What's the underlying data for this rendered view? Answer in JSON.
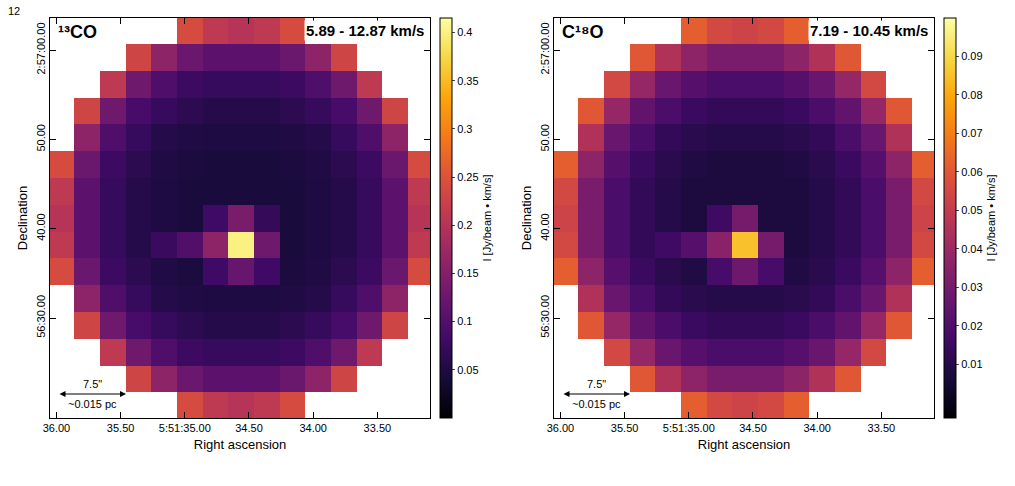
{
  "page": "12",
  "chart_data": [
    {
      "type": "heatmap",
      "label": "¹³CO",
      "title": "5.89 - 12.87 km/s",
      "xlabel": "Right ascension",
      "ylabel": "Declination",
      "colorbar_label": "I [Jy/beam • km/s]",
      "scale_bar": {
        "length_label": "7.5\"",
        "size_label": "~0.015 pc"
      },
      "grid": false,
      "xlim": [
        36.05,
        33.09
      ],
      "xticks": [
        {
          "value": 36,
          "label": "36.00"
        },
        {
          "value": 35.5,
          "label": "35.50"
        },
        {
          "value": 35,
          "label": "5:51:35.00"
        },
        {
          "value": 34.5,
          "label": "34.50"
        },
        {
          "value": 34,
          "label": "34.00"
        },
        {
          "value": 33.5,
          "label": "33.50"
        }
      ],
      "ylim": [
        18.8,
        63.6
      ],
      "yticks": [
        {
          "value": 60,
          "label": "2:57:00.00"
        },
        {
          "value": 50,
          "label": "50.00"
        },
        {
          "value": 40,
          "label": "40.00"
        },
        {
          "value": 30,
          "label": "56:30.00"
        }
      ],
      "zlim": [
        0,
        0.415
      ],
      "zticks": [
        0.05,
        0.1,
        0.15,
        0.2,
        0.25,
        0.3,
        0.35,
        0.4
      ],
      "x": [
        33.16,
        33.36,
        33.56,
        33.76,
        33.96,
        34.16,
        34.36,
        34.56,
        34.76,
        34.96,
        35.16,
        35.36,
        35.56,
        35.76,
        35.96
      ],
      "y": [
        20.2,
        23.2,
        26.2,
        29.2,
        32.2,
        35.2,
        38.2,
        41.2,
        44.2,
        47.2,
        50.2,
        53.2,
        56.2,
        59.2,
        62.2
      ],
      "z": [
        [
          null,
          null,
          null,
          null,
          null,
          0.24,
          0.21,
          0.2,
          0.21,
          0.24,
          null,
          null,
          null,
          null,
          null
        ],
        [
          null,
          null,
          null,
          0.23,
          0.16,
          0.125,
          0.11,
          0.11,
          0.11,
          0.125,
          0.16,
          0.23,
          null,
          null,
          null
        ],
        [
          null,
          null,
          0.21,
          0.13,
          0.095,
          0.078,
          0.072,
          0.072,
          0.072,
          0.078,
          0.095,
          0.13,
          0.21,
          null,
          null
        ],
        [
          null,
          0.23,
          0.13,
          0.088,
          0.072,
          0.062,
          0.057,
          0.057,
          0.057,
          0.062,
          0.072,
          0.088,
          0.13,
          0.23,
          null
        ],
        [
          null,
          0.16,
          0.095,
          0.072,
          0.057,
          0.052,
          0.05,
          0.05,
          0.05,
          0.052,
          0.057,
          0.072,
          0.095,
          0.16,
          null
        ],
        [
          0.24,
          0.125,
          0.078,
          0.062,
          0.052,
          0.047,
          0.08,
          0.12,
          0.08,
          0.047,
          0.052,
          0.062,
          0.078,
          0.125,
          0.24
        ],
        [
          0.21,
          0.11,
          0.072,
          0.057,
          0.05,
          0.045,
          0.13,
          0.4,
          0.16,
          0.1,
          0.075,
          0.057,
          0.072,
          0.11,
          0.21
        ],
        [
          0.2,
          0.11,
          0.072,
          0.057,
          0.05,
          0.045,
          0.07,
          0.14,
          0.08,
          0.045,
          0.05,
          0.057,
          0.072,
          0.11,
          0.2
        ],
        [
          0.21,
          0.11,
          0.072,
          0.057,
          0.05,
          0.045,
          0.045,
          0.045,
          0.045,
          0.045,
          0.05,
          0.057,
          0.072,
          0.11,
          0.21
        ],
        [
          0.24,
          0.125,
          0.078,
          0.062,
          0.052,
          0.047,
          0.045,
          0.045,
          0.045,
          0.047,
          0.052,
          0.062,
          0.078,
          0.125,
          0.24
        ],
        [
          null,
          0.16,
          0.095,
          0.072,
          0.057,
          0.052,
          0.05,
          0.05,
          0.05,
          0.052,
          0.057,
          0.072,
          0.095,
          0.16,
          null
        ],
        [
          null,
          0.23,
          0.13,
          0.088,
          0.072,
          0.062,
          0.057,
          0.057,
          0.057,
          0.062,
          0.072,
          0.088,
          0.13,
          0.23,
          null
        ],
        [
          null,
          null,
          0.21,
          0.13,
          0.095,
          0.078,
          0.072,
          0.072,
          0.072,
          0.078,
          0.095,
          0.13,
          0.21,
          null,
          null
        ],
        [
          null,
          null,
          null,
          0.23,
          0.16,
          0.125,
          0.11,
          0.11,
          0.11,
          0.125,
          0.16,
          0.23,
          null,
          null,
          null
        ],
        [
          null,
          null,
          null,
          null,
          null,
          0.24,
          0.21,
          0.2,
          0.21,
          0.24,
          null,
          null,
          null,
          null,
          null
        ]
      ]
    },
    {
      "type": "heatmap",
      "label": "C¹⁸O",
      "title": "7.19 - 10.45 km/s",
      "xlabel": "Right ascension",
      "ylabel": "Declination",
      "colorbar_label": "I [Jy/beam • km/s]",
      "scale_bar": {
        "length_label": "7.5\"",
        "size_label": "~0.015 pc"
      },
      "grid": false,
      "xlim": [
        36.05,
        33.09
      ],
      "xticks": [
        {
          "value": 36,
          "label": "36.00"
        },
        {
          "value": 35.5,
          "label": "35.50"
        },
        {
          "value": 35,
          "label": "5:51:35.00"
        },
        {
          "value": 34.5,
          "label": "34.50"
        },
        {
          "value": 34,
          "label": "34.00"
        },
        {
          "value": 33.5,
          "label": "33.50"
        }
      ],
      "ylim": [
        18.8,
        63.6
      ],
      "yticks": [
        {
          "value": 60,
          "label": "2:57:00.00"
        },
        {
          "value": 50,
          "label": "50.00"
        },
        {
          "value": 40,
          "label": "40.00"
        },
        {
          "value": 30,
          "label": "56:30.00"
        }
      ],
      "zlim": [
        -0.004,
        0.1
      ],
      "zticks": [
        0.01,
        0.02,
        0.03,
        0.04,
        0.05,
        0.06,
        0.07,
        0.08,
        0.09
      ],
      "x": [
        33.16,
        33.36,
        33.56,
        33.76,
        33.96,
        34.16,
        34.36,
        34.56,
        34.76,
        34.96,
        35.16,
        35.36,
        35.56,
        35.76,
        35.96
      ],
      "y": [
        20.2,
        23.2,
        26.2,
        29.2,
        32.2,
        35.2,
        38.2,
        41.2,
        44.2,
        47.2,
        50.2,
        53.2,
        56.2,
        59.2,
        62.2
      ],
      "z": [
        [
          null,
          null,
          null,
          null,
          null,
          0.062,
          0.055,
          0.053,
          0.055,
          0.062,
          null,
          null,
          null,
          null,
          null
        ],
        [
          null,
          null,
          null,
          0.06,
          0.045,
          0.036,
          0.031,
          0.031,
          0.031,
          0.036,
          0.045,
          0.06,
          null,
          null,
          null
        ],
        [
          null,
          null,
          0.055,
          0.038,
          0.027,
          0.022,
          0.019,
          0.019,
          0.019,
          0.022,
          0.027,
          0.038,
          0.055,
          null,
          null
        ],
        [
          null,
          0.06,
          0.038,
          0.025,
          0.019,
          0.015,
          0.013,
          0.013,
          0.013,
          0.015,
          0.019,
          0.025,
          0.038,
          0.06,
          null
        ],
        [
          null,
          0.045,
          0.027,
          0.019,
          0.013,
          0.011,
          0.01,
          0.01,
          0.01,
          0.011,
          0.013,
          0.019,
          0.027,
          0.045,
          null
        ],
        [
          0.062,
          0.036,
          0.022,
          0.015,
          0.011,
          0.009,
          0.018,
          0.028,
          0.018,
          0.009,
          0.011,
          0.015,
          0.022,
          0.036,
          0.062
        ],
        [
          0.055,
          0.031,
          0.019,
          0.013,
          0.01,
          0.008,
          0.03,
          0.085,
          0.035,
          0.022,
          0.016,
          0.013,
          0.019,
          0.031,
          0.055
        ],
        [
          0.053,
          0.031,
          0.019,
          0.013,
          0.01,
          0.008,
          0.008,
          0.03,
          0.016,
          0.008,
          0.01,
          0.013,
          0.019,
          0.031,
          0.053
        ],
        [
          0.055,
          0.031,
          0.019,
          0.013,
          0.01,
          0.008,
          0.008,
          0.008,
          0.008,
          0.008,
          0.01,
          0.013,
          0.019,
          0.031,
          0.055
        ],
        [
          0.062,
          0.036,
          0.022,
          0.015,
          0.011,
          0.009,
          0.008,
          0.008,
          0.008,
          0.009,
          0.011,
          0.015,
          0.022,
          0.036,
          0.062
        ],
        [
          null,
          0.045,
          0.027,
          0.019,
          0.013,
          0.011,
          0.01,
          0.01,
          0.01,
          0.011,
          0.013,
          0.019,
          0.027,
          0.045,
          null
        ],
        [
          null,
          0.06,
          0.038,
          0.025,
          0.019,
          0.015,
          0.013,
          0.013,
          0.013,
          0.015,
          0.019,
          0.025,
          0.038,
          0.06,
          null
        ],
        [
          null,
          null,
          0.055,
          0.038,
          0.027,
          0.022,
          0.019,
          0.019,
          0.019,
          0.022,
          0.027,
          0.038,
          0.055,
          null,
          null
        ],
        [
          null,
          null,
          null,
          0.06,
          0.045,
          0.036,
          0.031,
          0.031,
          0.031,
          0.036,
          0.045,
          0.06,
          null,
          null,
          null
        ],
        [
          null,
          null,
          null,
          null,
          null,
          0.062,
          0.055,
          0.053,
          0.055,
          0.062,
          null,
          null,
          null,
          null,
          null
        ]
      ]
    }
  ]
}
